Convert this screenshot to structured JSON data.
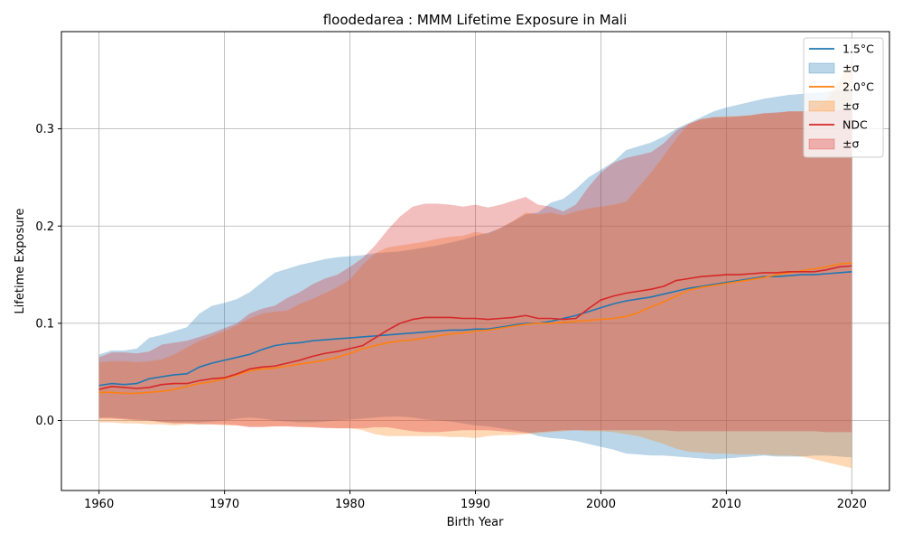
{
  "chart_data": {
    "type": "line",
    "title": "floodedarea : MMM Lifetime Exposure in Mali",
    "xlabel": "Birth Year",
    "ylabel": "Lifetime Exposure",
    "xlim": [
      1957,
      2023
    ],
    "ylim": [
      -0.072,
      0.4
    ],
    "x_ticks": [
      1960,
      1970,
      1980,
      1990,
      2000,
      2010,
      2020
    ],
    "x_tick_labels": [
      "1960",
      "1970",
      "1980",
      "1990",
      "2000",
      "2010",
      "2020"
    ],
    "y_ticks": [
      0.0,
      0.1,
      0.2,
      0.3
    ],
    "y_tick_labels": [
      "0.0",
      "0.1",
      "0.2",
      "0.3"
    ],
    "grid": true,
    "legend_position": "top-right",
    "x": [
      1960,
      1961,
      1962,
      1963,
      1964,
      1965,
      1966,
      1967,
      1968,
      1969,
      1970,
      1971,
      1972,
      1973,
      1974,
      1975,
      1976,
      1977,
      1978,
      1979,
      1980,
      1981,
      1982,
      1983,
      1984,
      1985,
      1986,
      1987,
      1988,
      1989,
      1990,
      1991,
      1992,
      1993,
      1994,
      1995,
      1996,
      1997,
      1998,
      1999,
      2000,
      2001,
      2002,
      2003,
      2004,
      2005,
      2006,
      2007,
      2008,
      2009,
      2010,
      2011,
      2012,
      2013,
      2014,
      2015,
      2016,
      2017,
      2018,
      2019,
      2020
    ],
    "series": [
      {
        "name": "1.5°C",
        "band_label": "±σ",
        "color": "#1f77b4",
        "band_color": "#aecbe3",
        "values": [
          0.036,
          0.038,
          0.037,
          0.038,
          0.043,
          0.045,
          0.047,
          0.048,
          0.055,
          0.059,
          0.062,
          0.065,
          0.068,
          0.073,
          0.077,
          0.079,
          0.08,
          0.082,
          0.083,
          0.084,
          0.085,
          0.086,
          0.087,
          0.088,
          0.089,
          0.09,
          0.091,
          0.092,
          0.093,
          0.093,
          0.094,
          0.094,
          0.096,
          0.098,
          0.1,
          0.1,
          0.102,
          0.105,
          0.108,
          0.112,
          0.116,
          0.12,
          0.123,
          0.125,
          0.127,
          0.13,
          0.133,
          0.136,
          0.138,
          0.14,
          0.142,
          0.144,
          0.146,
          0.148,
          0.148,
          0.149,
          0.15,
          0.15,
          0.151,
          0.152,
          0.153
        ],
        "upper": [
          0.068,
          0.072,
          0.072,
          0.074,
          0.085,
          0.088,
          0.092,
          0.096,
          0.11,
          0.118,
          0.121,
          0.125,
          0.132,
          0.142,
          0.152,
          0.156,
          0.16,
          0.163,
          0.166,
          0.168,
          0.169,
          0.17,
          0.172,
          0.173,
          0.174,
          0.176,
          0.178,
          0.18,
          0.183,
          0.186,
          0.19,
          0.193,
          0.198,
          0.205,
          0.212,
          0.214,
          0.224,
          0.228,
          0.238,
          0.25,
          0.258,
          0.266,
          0.278,
          0.282,
          0.286,
          0.292,
          0.3,
          0.306,
          0.312,
          0.318,
          0.322,
          0.325,
          0.328,
          0.331,
          0.333,
          0.335,
          0.336,
          0.337,
          0.338,
          0.34,
          0.34
        ],
        "lower": [
          0.003,
          0.003,
          0.002,
          0.001,
          0.0,
          -0.001,
          -0.002,
          -0.002,
          -0.002,
          -0.001,
          0.0,
          0.002,
          0.003,
          0.002,
          0.0,
          -0.001,
          -0.002,
          -0.002,
          -0.001,
          0.0,
          0.001,
          0.002,
          0.003,
          0.004,
          0.004,
          0.003,
          0.001,
          0.0,
          -0.001,
          -0.003,
          -0.005,
          -0.006,
          -0.008,
          -0.01,
          -0.012,
          -0.016,
          -0.018,
          -0.019,
          -0.021,
          -0.024,
          -0.027,
          -0.03,
          -0.034,
          -0.035,
          -0.036,
          -0.036,
          -0.037,
          -0.038,
          -0.039,
          -0.04,
          -0.039,
          -0.038,
          -0.037,
          -0.036,
          -0.037,
          -0.037,
          -0.037,
          -0.036,
          -0.036,
          -0.037,
          -0.038
        ]
      },
      {
        "name": "2.0°C",
        "band_label": "±σ",
        "color": "#ff7f0e",
        "band_color": "#ffcfa4",
        "values": [
          0.029,
          0.029,
          0.028,
          0.028,
          0.029,
          0.03,
          0.032,
          0.035,
          0.038,
          0.04,
          0.043,
          0.047,
          0.051,
          0.053,
          0.054,
          0.056,
          0.058,
          0.06,
          0.062,
          0.065,
          0.069,
          0.074,
          0.077,
          0.08,
          0.082,
          0.083,
          0.085,
          0.087,
          0.089,
          0.09,
          0.092,
          0.093,
          0.095,
          0.097,
          0.099,
          0.1,
          0.1,
          0.101,
          0.102,
          0.103,
          0.104,
          0.105,
          0.107,
          0.111,
          0.117,
          0.122,
          0.128,
          0.134,
          0.137,
          0.139,
          0.141,
          0.143,
          0.145,
          0.147,
          0.15,
          0.152,
          0.154,
          0.156,
          0.158,
          0.161,
          0.162
        ],
        "upper": [
          0.06,
          0.061,
          0.061,
          0.06,
          0.061,
          0.063,
          0.068,
          0.075,
          0.082,
          0.087,
          0.092,
          0.098,
          0.105,
          0.11,
          0.112,
          0.113,
          0.12,
          0.125,
          0.131,
          0.137,
          0.145,
          0.16,
          0.172,
          0.178,
          0.18,
          0.182,
          0.184,
          0.187,
          0.189,
          0.19,
          0.194,
          0.192,
          0.198,
          0.205,
          0.214,
          0.212,
          0.214,
          0.211,
          0.215,
          0.218,
          0.22,
          0.222,
          0.225,
          0.24,
          0.255,
          0.272,
          0.29,
          0.305,
          0.31,
          0.312,
          0.313,
          0.313,
          0.314,
          0.316,
          0.316,
          0.318,
          0.318,
          0.32,
          0.33,
          0.35,
          0.37
        ],
        "lower": [
          -0.002,
          -0.002,
          -0.003,
          -0.003,
          -0.004,
          -0.004,
          -0.005,
          -0.004,
          -0.004,
          -0.004,
          -0.005,
          -0.005,
          -0.006,
          -0.006,
          -0.006,
          -0.006,
          -0.006,
          -0.007,
          -0.007,
          -0.008,
          -0.008,
          -0.01,
          -0.014,
          -0.016,
          -0.016,
          -0.016,
          -0.016,
          -0.016,
          -0.017,
          -0.017,
          -0.018,
          -0.016,
          -0.015,
          -0.015,
          -0.014,
          -0.013,
          -0.012,
          -0.011,
          -0.01,
          -0.011,
          -0.011,
          -0.012,
          -0.014,
          -0.016,
          -0.02,
          -0.024,
          -0.029,
          -0.032,
          -0.033,
          -0.034,
          -0.034,
          -0.035,
          -0.035,
          -0.035,
          -0.036,
          -0.036,
          -0.037,
          -0.04,
          -0.043,
          -0.046,
          -0.049
        ]
      },
      {
        "name": "NDC",
        "band_label": "±σ",
        "color": "#d62728",
        "band_color": "#eda9a9",
        "values": [
          0.032,
          0.035,
          0.034,
          0.033,
          0.034,
          0.037,
          0.038,
          0.038,
          0.041,
          0.043,
          0.044,
          0.048,
          0.053,
          0.055,
          0.056,
          0.059,
          0.062,
          0.066,
          0.069,
          0.071,
          0.074,
          0.077,
          0.085,
          0.093,
          0.1,
          0.104,
          0.106,
          0.106,
          0.106,
          0.105,
          0.105,
          0.104,
          0.105,
          0.106,
          0.108,
          0.105,
          0.105,
          0.104,
          0.105,
          0.115,
          0.124,
          0.128,
          0.131,
          0.133,
          0.135,
          0.138,
          0.144,
          0.146,
          0.148,
          0.149,
          0.15,
          0.15,
          0.151,
          0.152,
          0.152,
          0.153,
          0.153,
          0.153,
          0.155,
          0.158,
          0.159
        ],
        "upper": [
          0.065,
          0.07,
          0.07,
          0.069,
          0.071,
          0.078,
          0.08,
          0.082,
          0.086,
          0.09,
          0.095,
          0.1,
          0.11,
          0.115,
          0.118,
          0.126,
          0.132,
          0.14,
          0.146,
          0.15,
          0.158,
          0.167,
          0.18,
          0.196,
          0.21,
          0.22,
          0.223,
          0.223,
          0.222,
          0.22,
          0.222,
          0.219,
          0.222,
          0.226,
          0.23,
          0.222,
          0.22,
          0.215,
          0.222,
          0.24,
          0.255,
          0.265,
          0.27,
          0.273,
          0.276,
          0.285,
          0.298,
          0.305,
          0.31,
          0.312,
          0.312,
          0.313,
          0.314,
          0.316,
          0.317,
          0.318,
          0.318,
          0.318,
          0.318,
          0.319,
          0.32
        ],
        "lower": [
          0.002,
          0.002,
          0.001,
          0.0,
          0.0,
          -0.002,
          -0.003,
          -0.003,
          -0.004,
          -0.004,
          -0.004,
          -0.005,
          -0.007,
          -0.007,
          -0.006,
          -0.006,
          -0.007,
          -0.007,
          -0.008,
          -0.008,
          -0.008,
          -0.008,
          -0.007,
          -0.007,
          -0.009,
          -0.011,
          -0.012,
          -0.012,
          -0.011,
          -0.01,
          -0.01,
          -0.01,
          -0.011,
          -0.012,
          -0.013,
          -0.012,
          -0.011,
          -0.01,
          -0.01,
          -0.01,
          -0.01,
          -0.01,
          -0.01,
          -0.01,
          -0.01,
          -0.01,
          -0.011,
          -0.011,
          -0.011,
          -0.011,
          -0.011,
          -0.011,
          -0.011,
          -0.011,
          -0.011,
          -0.011,
          -0.011,
          -0.011,
          -0.012,
          -0.012,
          -0.012
        ]
      }
    ]
  }
}
